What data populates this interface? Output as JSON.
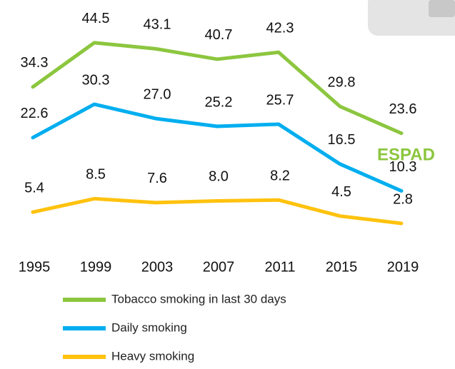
{
  "chart_data": {
    "type": "line",
    "annotation": "ESPAD",
    "categories": [
      "1995",
      "1999",
      "2003",
      "2007",
      "2011",
      "2015",
      "2019"
    ],
    "series": [
      {
        "name": "Tobacco smoking in last 30 days",
        "color": "#8cc63f",
        "values": [
          34.3,
          44.5,
          43.1,
          40.7,
          42.3,
          29.8,
          23.6
        ],
        "value_labels": [
          "34.3",
          "44.5",
          "43.1",
          "40.7",
          "42.3",
          "29.8",
          "23.6"
        ]
      },
      {
        "name": "Daily smoking",
        "color": "#00aeef",
        "values": [
          22.6,
          30.3,
          27.0,
          25.2,
          25.7,
          16.5,
          10.3
        ],
        "value_labels": [
          "22.6",
          "30.3",
          "27.0",
          "25.2",
          "25.7",
          "16.5",
          "10.3"
        ]
      },
      {
        "name": "Heavy smoking",
        "color": "#ffc20e",
        "values": [
          5.4,
          8.5,
          7.6,
          8.0,
          8.2,
          4.5,
          2.8
        ],
        "value_labels": [
          "5.4",
          "8.5",
          "7.6",
          "8.0",
          "8.2",
          "4.5",
          "2.8"
        ]
      }
    ]
  }
}
